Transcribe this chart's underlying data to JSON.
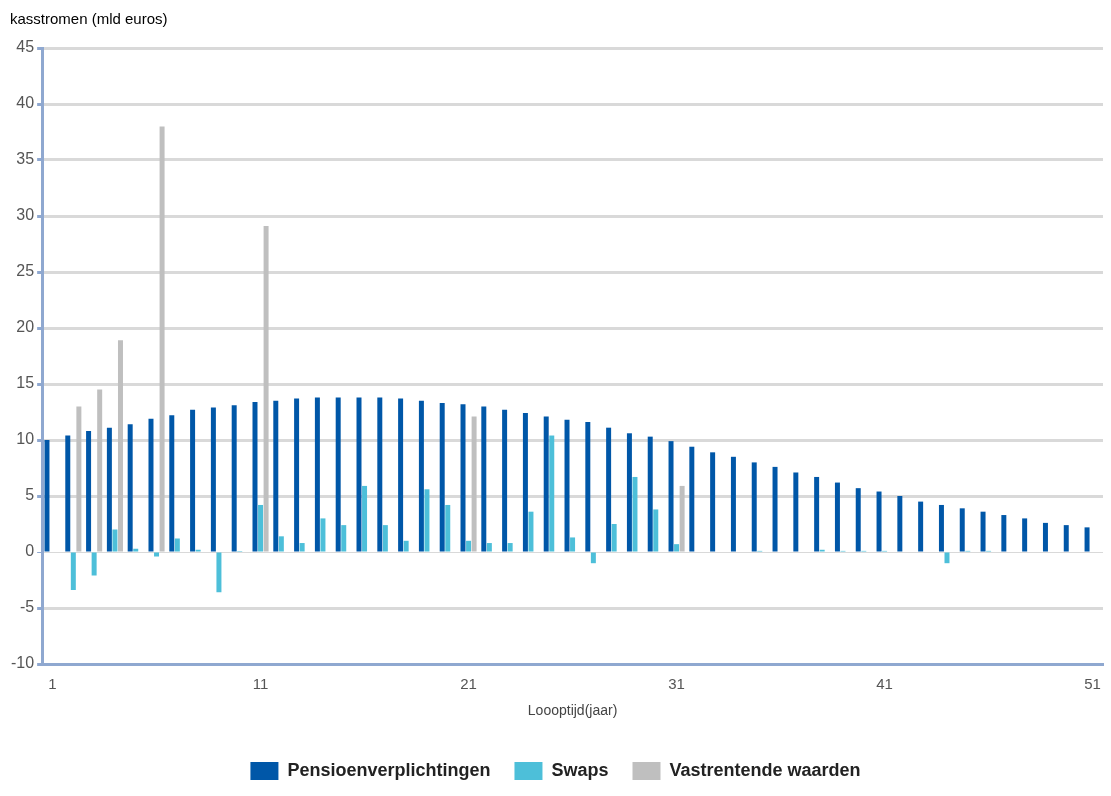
{
  "chart_data": {
    "type": "bar",
    "ylabel": "kasstromen (mld euros)",
    "xlabel": "Loooptijd(jaar)",
    "categories": [
      "1",
      null,
      null,
      null,
      null,
      null,
      null,
      null,
      null,
      null,
      "11",
      null,
      null,
      null,
      null,
      null,
      null,
      null,
      null,
      null,
      "21",
      null,
      null,
      null,
      null,
      null,
      null,
      null,
      null,
      null,
      "31",
      null,
      null,
      null,
      null,
      null,
      null,
      null,
      null,
      null,
      "41",
      null,
      null,
      null,
      null,
      null,
      null,
      null,
      null,
      null,
      "51"
    ],
    "series": [
      {
        "name": "Pensioenverplichtingen",
        "color": "#0057a8",
        "values": [
          10.0,
          10.4,
          10.8,
          11.1,
          11.4,
          11.9,
          12.2,
          12.7,
          12.9,
          13.1,
          13.4,
          13.5,
          13.7,
          13.8,
          13.8,
          13.8,
          13.8,
          13.7,
          13.5,
          13.3,
          13.2,
          13.0,
          12.7,
          12.4,
          12.1,
          11.8,
          11.6,
          11.1,
          10.6,
          10.3,
          9.9,
          9.4,
          8.9,
          8.5,
          8.0,
          7.6,
          7.1,
          6.7,
          6.2,
          5.7,
          5.4,
          5.0,
          4.5,
          4.2,
          3.9,
          3.6,
          3.3,
          3.0,
          2.6,
          2.4,
          2.2
        ]
      },
      {
        "name": "Swaps",
        "color": "#4dbfd9",
        "values": [
          0,
          -3.4,
          -2.1,
          2.0,
          0.3,
          -0.4,
          1.2,
          0.2,
          -3.6,
          0.1,
          4.2,
          1.4,
          0.8,
          3.0,
          2.4,
          5.9,
          2.4,
          1.0,
          5.6,
          4.2,
          1.0,
          0.8,
          0.8,
          3.6,
          10.4,
          1.3,
          -1.0,
          2.5,
          6.7,
          3.8,
          0.7,
          0,
          0,
          0,
          0.1,
          0,
          0,
          0.2,
          0.1,
          0.1,
          0.1,
          0,
          0,
          -1.0,
          0.1,
          0.1,
          0,
          0,
          0,
          0,
          0
        ]
      },
      {
        "name": "Vastrentende waarden",
        "color": "#bfbfbf",
        "values": [
          0,
          13.0,
          14.5,
          18.9,
          0,
          38.0,
          0,
          0,
          0,
          0,
          29.1,
          0,
          0,
          0,
          0,
          0,
          0,
          0,
          0,
          0,
          12.1,
          0,
          0,
          0,
          0,
          0,
          0,
          0,
          0,
          0,
          5.9,
          0,
          0,
          0,
          0,
          0,
          0,
          0,
          0,
          0,
          0,
          0,
          0,
          0,
          0,
          0,
          0,
          0,
          0,
          0,
          0
        ]
      }
    ],
    "ylim": [
      -10,
      45
    ],
    "yticks": [
      -10,
      -5,
      0,
      5,
      10,
      15,
      20,
      25,
      30,
      35,
      40,
      45
    ],
    "grid": "y",
    "legend": "bottom"
  }
}
